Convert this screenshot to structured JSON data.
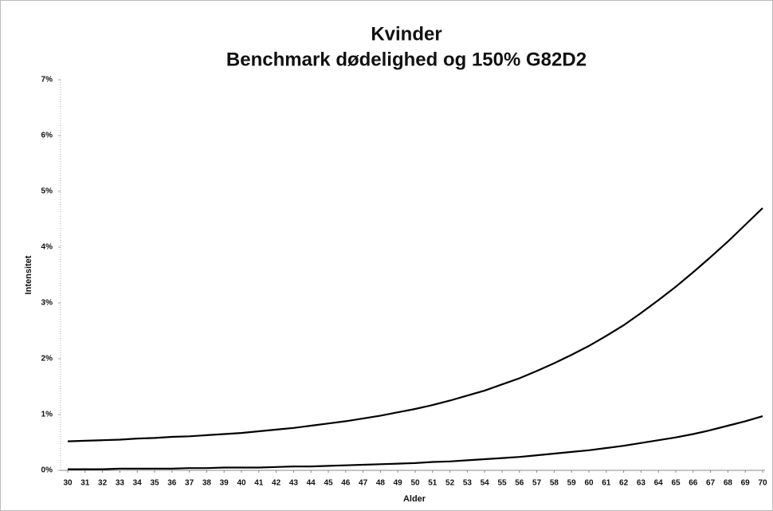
{
  "chart_data": {
    "type": "line",
    "title": "Kvinder",
    "subtitle": "Benchmark dødelighed og 150% G82D2",
    "x_label": "Alder",
    "y_label": "Intensitet",
    "x": [
      30,
      31,
      32,
      33,
      34,
      35,
      36,
      37,
      38,
      39,
      40,
      41,
      42,
      43,
      44,
      45,
      46,
      47,
      48,
      49,
      50,
      51,
      52,
      53,
      54,
      55,
      56,
      57,
      58,
      59,
      60,
      61,
      62,
      63,
      64,
      65,
      66,
      67,
      68,
      69,
      70
    ],
    "xlim": [
      30,
      70
    ],
    "xticks": [
      30,
      31,
      32,
      33,
      34,
      35,
      36,
      37,
      38,
      39,
      40,
      41,
      42,
      43,
      44,
      45,
      46,
      47,
      48,
      49,
      50,
      51,
      52,
      53,
      54,
      55,
      56,
      57,
      58,
      59,
      60,
      61,
      62,
      63,
      64,
      65,
      66,
      67,
      68,
      69,
      70
    ],
    "ylim": [
      0,
      7
    ],
    "yticks": [
      {
        "value": 0,
        "label": "0%"
      },
      {
        "value": 1,
        "label": "1%"
      },
      {
        "value": 2,
        "label": "2%"
      },
      {
        "value": 3,
        "label": "3%"
      },
      {
        "value": 4,
        "label": "4%"
      },
      {
        "value": 5,
        "label": "5%"
      },
      {
        "value": 6,
        "label": "6%"
      },
      {
        "value": 7,
        "label": "7%"
      }
    ],
    "grid": false,
    "series": [
      {
        "color": "#000000",
        "values": [
          0.52,
          0.53,
          0.54,
          0.55,
          0.57,
          0.58,
          0.6,
          0.61,
          0.63,
          0.65,
          0.67,
          0.7,
          0.73,
          0.76,
          0.8,
          0.84,
          0.88,
          0.93,
          0.98,
          1.04,
          1.1,
          1.17,
          1.25,
          1.34,
          1.43,
          1.54,
          1.65,
          1.78,
          1.92,
          2.07,
          2.23,
          2.41,
          2.6,
          2.82,
          3.05,
          3.29,
          3.55,
          3.82,
          4.1,
          4.4,
          4.7
        ]
      },
      {
        "color": "#000000",
        "values": [
          0.02,
          0.02,
          0.02,
          0.03,
          0.03,
          0.03,
          0.03,
          0.04,
          0.04,
          0.05,
          0.05,
          0.05,
          0.06,
          0.07,
          0.07,
          0.08,
          0.09,
          0.1,
          0.11,
          0.12,
          0.13,
          0.15,
          0.16,
          0.18,
          0.2,
          0.22,
          0.24,
          0.27,
          0.3,
          0.33,
          0.36,
          0.4,
          0.44,
          0.49,
          0.54,
          0.59,
          0.65,
          0.72,
          0.8,
          0.88,
          0.97
        ]
      }
    ]
  }
}
